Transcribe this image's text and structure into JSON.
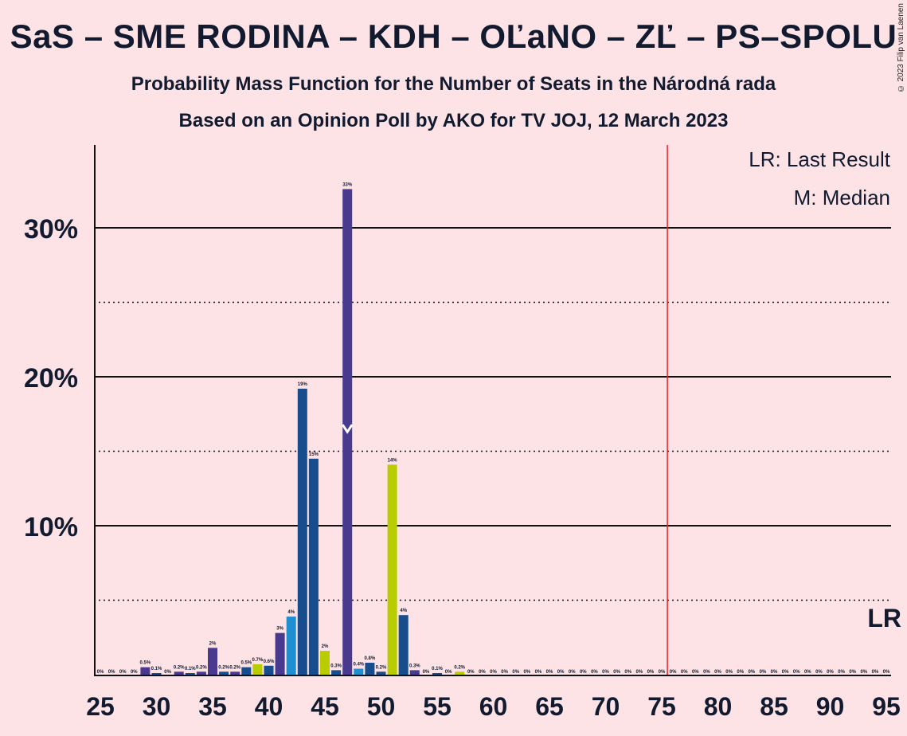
{
  "header": {
    "title": "SaS – SME RODINA – KDH – OĽaNO – ZĽ – PS–SPOLU",
    "subtitle1": "Probability Mass Function for the Number of Seats in the Národná rada",
    "subtitle2": "Based on an Opinion Poll by AKO for TV JOJ, 12 March 2023",
    "copyright": "© 2023 Filip van Laenen"
  },
  "chart_data": {
    "type": "bar",
    "title": "SaS – SME RODINA – KDH – OĽaNO – ZĽ – PS–SPOLU",
    "subtitle": "Probability Mass Function for the Number of Seats in the Národná rada",
    "xlabel": "",
    "ylabel": "",
    "xlim": [
      25,
      95
    ],
    "ylim": [
      0,
      35
    ],
    "x_ticks": [
      "25",
      "30",
      "35",
      "40",
      "45",
      "50",
      "55",
      "60",
      "65",
      "70",
      "75",
      "80",
      "85",
      "90",
      "95"
    ],
    "y_ticks": [
      "10%",
      "20%",
      "30%"
    ],
    "grid": "solid at 10/20/30%, dotted at 5/15/25%",
    "legend": {
      "lines": [
        "LR: Last Result",
        "M: Median"
      ],
      "placement": "top-right"
    },
    "last_result": {
      "seats": 76,
      "label": "LR",
      "color": "#e4222a"
    },
    "median": {
      "seats": 47,
      "label": "M"
    },
    "colors": {
      "purple": "#4a3a8f",
      "navy": "#174d8c",
      "cyan": "#1f8fd1",
      "olive": "#b9cc00"
    },
    "bars": [
      {
        "x": 25,
        "v": 0,
        "label": "0%",
        "c": "navy"
      },
      {
        "x": 26,
        "v": 0,
        "label": "0%",
        "c": "navy"
      },
      {
        "x": 27,
        "v": 0,
        "label": "0%",
        "c": "navy"
      },
      {
        "x": 28,
        "v": 0,
        "label": "0%",
        "c": "navy"
      },
      {
        "x": 29,
        "v": 0.5,
        "label": "0.5%",
        "c": "purple"
      },
      {
        "x": 30,
        "v": 0.1,
        "label": "0.1%",
        "c": "navy"
      },
      {
        "x": 31,
        "v": 0,
        "label": "0%",
        "c": "navy"
      },
      {
        "x": 32,
        "v": 0.2,
        "label": "0.2%",
        "c": "purple"
      },
      {
        "x": 33,
        "v": 0.1,
        "label": "0.1%",
        "c": "navy"
      },
      {
        "x": 34,
        "v": 0.2,
        "label": "0.2%",
        "c": "purple"
      },
      {
        "x": 35,
        "v": 1.8,
        "label": "2%",
        "c": "purple"
      },
      {
        "x": 36,
        "v": 0.2,
        "label": "0.2%",
        "c": "navy"
      },
      {
        "x": 37,
        "v": 0.2,
        "label": "0.2%",
        "c": "purple"
      },
      {
        "x": 38,
        "v": 0.5,
        "label": "0.5%",
        "c": "navy"
      },
      {
        "x": 39,
        "v": 0.7,
        "label": "0.7%",
        "c": "olive"
      },
      {
        "x": 40,
        "v": 0.6,
        "label": "0.6%",
        "c": "navy"
      },
      {
        "x": 41,
        "v": 2.8,
        "label": "3%",
        "c": "purple"
      },
      {
        "x": 42,
        "v": 3.9,
        "label": "4%",
        "c": "cyan"
      },
      {
        "x": 43,
        "v": 19.2,
        "label": "19%",
        "c": "navy"
      },
      {
        "x": 44,
        "v": 14.5,
        "label": "15%",
        "c": "navy"
      },
      {
        "x": 45,
        "v": 1.6,
        "label": "2%",
        "c": "olive"
      },
      {
        "x": 46,
        "v": 0.3,
        "label": "0.3%",
        "c": "navy"
      },
      {
        "x": 47,
        "v": 32.6,
        "label": "33%",
        "c": "purple"
      },
      {
        "x": 48,
        "v": 0.4,
        "label": "0.4%",
        "c": "cyan"
      },
      {
        "x": 49,
        "v": 0.8,
        "label": "0.8%",
        "c": "navy"
      },
      {
        "x": 50,
        "v": 0.2,
        "label": "0.2%",
        "c": "navy"
      },
      {
        "x": 51,
        "v": 14.1,
        "label": "14%",
        "c": "olive"
      },
      {
        "x": 52,
        "v": 4.0,
        "label": "4%",
        "c": "navy"
      },
      {
        "x": 53,
        "v": 0.3,
        "label": "0.3%",
        "c": "purple"
      },
      {
        "x": 54,
        "v": 0,
        "label": "0%",
        "c": "navy"
      },
      {
        "x": 55,
        "v": 0.1,
        "label": "0.1%",
        "c": "navy"
      },
      {
        "x": 56,
        "v": 0,
        "label": "0%",
        "c": "navy"
      },
      {
        "x": 57,
        "v": 0.2,
        "label": "0.2%",
        "c": "olive"
      },
      {
        "x": 58,
        "v": 0,
        "label": "0%",
        "c": "navy"
      },
      {
        "x": 59,
        "v": 0,
        "label": "0%",
        "c": "navy"
      },
      {
        "x": 60,
        "v": 0,
        "label": "0%",
        "c": "navy"
      },
      {
        "x": 61,
        "v": 0,
        "label": "0%",
        "c": "navy"
      },
      {
        "x": 62,
        "v": 0,
        "label": "0%",
        "c": "navy"
      },
      {
        "x": 63,
        "v": 0,
        "label": "0%",
        "c": "navy"
      },
      {
        "x": 64,
        "v": 0,
        "label": "0%",
        "c": "navy"
      },
      {
        "x": 65,
        "v": 0,
        "label": "0%",
        "c": "navy"
      },
      {
        "x": 66,
        "v": 0,
        "label": "0%",
        "c": "navy"
      },
      {
        "x": 67,
        "v": 0,
        "label": "0%",
        "c": "navy"
      },
      {
        "x": 68,
        "v": 0,
        "label": "0%",
        "c": "navy"
      },
      {
        "x": 69,
        "v": 0,
        "label": "0%",
        "c": "navy"
      },
      {
        "x": 70,
        "v": 0,
        "label": "0%",
        "c": "navy"
      },
      {
        "x": 71,
        "v": 0,
        "label": "0%",
        "c": "navy"
      },
      {
        "x": 72,
        "v": 0,
        "label": "0%",
        "c": "navy"
      },
      {
        "x": 73,
        "v": 0,
        "label": "0%",
        "c": "navy"
      },
      {
        "x": 74,
        "v": 0,
        "label": "0%",
        "c": "navy"
      },
      {
        "x": 75,
        "v": 0,
        "label": "0%",
        "c": "navy"
      },
      {
        "x": 76,
        "v": 0,
        "label": "0%",
        "c": "navy"
      },
      {
        "x": 77,
        "v": 0,
        "label": "0%",
        "c": "navy"
      },
      {
        "x": 78,
        "v": 0,
        "label": "0%",
        "c": "navy"
      },
      {
        "x": 79,
        "v": 0,
        "label": "0%",
        "c": "navy"
      },
      {
        "x": 80,
        "v": 0,
        "label": "0%",
        "c": "navy"
      },
      {
        "x": 81,
        "v": 0,
        "label": "0%",
        "c": "navy"
      },
      {
        "x": 82,
        "v": 0,
        "label": "0%",
        "c": "navy"
      },
      {
        "x": 83,
        "v": 0,
        "label": "0%",
        "c": "navy"
      },
      {
        "x": 84,
        "v": 0,
        "label": "0%",
        "c": "navy"
      },
      {
        "x": 85,
        "v": 0,
        "label": "0%",
        "c": "navy"
      },
      {
        "x": 86,
        "v": 0,
        "label": "0%",
        "c": "navy"
      },
      {
        "x": 87,
        "v": 0,
        "label": "0%",
        "c": "navy"
      },
      {
        "x": 88,
        "v": 0,
        "label": "0%",
        "c": "navy"
      },
      {
        "x": 89,
        "v": 0,
        "label": "0%",
        "c": "navy"
      },
      {
        "x": 90,
        "v": 0,
        "label": "0%",
        "c": "navy"
      },
      {
        "x": 91,
        "v": 0,
        "label": "0%",
        "c": "navy"
      },
      {
        "x": 92,
        "v": 0,
        "label": "0%",
        "c": "navy"
      },
      {
        "x": 93,
        "v": 0,
        "label": "0%",
        "c": "navy"
      },
      {
        "x": 94,
        "v": 0,
        "label": "0%",
        "c": "navy"
      },
      {
        "x": 95,
        "v": 0,
        "label": "0%",
        "c": "navy"
      }
    ]
  }
}
